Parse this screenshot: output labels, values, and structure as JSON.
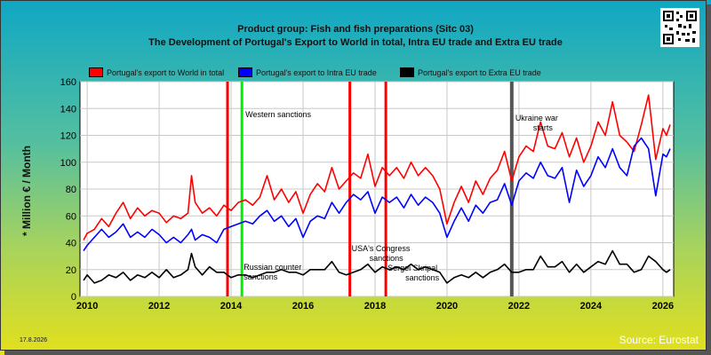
{
  "header": {
    "title_line1": "Product group: Fish and fish preparations (Sitc 03)",
    "title_line2": "The Development of Portugal's Export to World in total, Intra EU trade and Extra EU trade"
  },
  "footer": {
    "date": "17.8.2026",
    "source": "Source: Eurostat"
  },
  "logo": {
    "kind": "qr-code-icon"
  },
  "chart_data": {
    "type": "line",
    "ylabel": "* Million € / Month",
    "xlim": [
      2009.8,
      2026.3
    ],
    "ylim": [
      0,
      160
    ],
    "yticks": [
      0,
      20,
      40,
      60,
      80,
      100,
      120,
      140,
      160
    ],
    "xticks": [
      2010,
      2012,
      2014,
      2016,
      2018,
      2020,
      2022,
      2024,
      2026
    ],
    "grid": true,
    "legend_position": "top",
    "series": [
      {
        "name": "Portugal's export to World in total",
        "color": "#ff0000",
        "points": [
          [
            2009.9,
            42
          ],
          [
            2010.0,
            47
          ],
          [
            2010.2,
            50
          ],
          [
            2010.4,
            58
          ],
          [
            2010.6,
            52
          ],
          [
            2010.8,
            62
          ],
          [
            2011.0,
            70
          ],
          [
            2011.2,
            58
          ],
          [
            2011.4,
            66
          ],
          [
            2011.6,
            60
          ],
          [
            2011.8,
            64
          ],
          [
            2012.0,
            62
          ],
          [
            2012.2,
            55
          ],
          [
            2012.4,
            60
          ],
          [
            2012.6,
            58
          ],
          [
            2012.8,
            62
          ],
          [
            2012.9,
            90
          ],
          [
            2013.0,
            70
          ],
          [
            2013.2,
            62
          ],
          [
            2013.4,
            66
          ],
          [
            2013.6,
            60
          ],
          [
            2013.8,
            68
          ],
          [
            2014.0,
            64
          ],
          [
            2014.2,
            70
          ],
          [
            2014.4,
            72
          ],
          [
            2014.6,
            68
          ],
          [
            2014.8,
            74
          ],
          [
            2015.0,
            90
          ],
          [
            2015.2,
            72
          ],
          [
            2015.4,
            80
          ],
          [
            2015.6,
            70
          ],
          [
            2015.8,
            78
          ],
          [
            2016.0,
            62
          ],
          [
            2016.2,
            76
          ],
          [
            2016.4,
            84
          ],
          [
            2016.6,
            78
          ],
          [
            2016.8,
            96
          ],
          [
            2017.0,
            80
          ],
          [
            2017.2,
            86
          ],
          [
            2017.4,
            92
          ],
          [
            2017.6,
            88
          ],
          [
            2017.8,
            106
          ],
          [
            2018.0,
            82
          ],
          [
            2018.2,
            96
          ],
          [
            2018.4,
            90
          ],
          [
            2018.6,
            96
          ],
          [
            2018.8,
            88
          ],
          [
            2019.0,
            100
          ],
          [
            2019.2,
            90
          ],
          [
            2019.4,
            96
          ],
          [
            2019.6,
            90
          ],
          [
            2019.8,
            80
          ],
          [
            2020.0,
            54
          ],
          [
            2020.2,
            70
          ],
          [
            2020.4,
            82
          ],
          [
            2020.6,
            70
          ],
          [
            2020.8,
            86
          ],
          [
            2021.0,
            76
          ],
          [
            2021.2,
            88
          ],
          [
            2021.4,
            94
          ],
          [
            2021.6,
            108
          ],
          [
            2021.8,
            86
          ],
          [
            2022.0,
            104
          ],
          [
            2022.2,
            112
          ],
          [
            2022.4,
            108
          ],
          [
            2022.6,
            130
          ],
          [
            2022.8,
            112
          ],
          [
            2023.0,
            110
          ],
          [
            2023.2,
            122
          ],
          [
            2023.4,
            104
          ],
          [
            2023.6,
            118
          ],
          [
            2023.8,
            100
          ],
          [
            2024.0,
            112
          ],
          [
            2024.2,
            130
          ],
          [
            2024.4,
            120
          ],
          [
            2024.6,
            145
          ],
          [
            2024.8,
            120
          ],
          [
            2025.0,
            115
          ],
          [
            2025.2,
            108
          ],
          [
            2025.4,
            128
          ],
          [
            2025.6,
            150
          ],
          [
            2025.8,
            102
          ],
          [
            2026.0,
            125
          ],
          [
            2026.1,
            120
          ],
          [
            2026.2,
            128
          ]
        ]
      },
      {
        "name": "Portugal's export to Intra EU trade",
        "color": "#0000ff",
        "points": [
          [
            2009.9,
            34
          ],
          [
            2010.0,
            38
          ],
          [
            2010.2,
            44
          ],
          [
            2010.4,
            50
          ],
          [
            2010.6,
            44
          ],
          [
            2010.8,
            48
          ],
          [
            2011.0,
            54
          ],
          [
            2011.2,
            44
          ],
          [
            2011.4,
            48
          ],
          [
            2011.6,
            44
          ],
          [
            2011.8,
            50
          ],
          [
            2012.0,
            46
          ],
          [
            2012.2,
            40
          ],
          [
            2012.4,
            44
          ],
          [
            2012.6,
            40
          ],
          [
            2012.8,
            46
          ],
          [
            2012.9,
            50
          ],
          [
            2013.0,
            42
          ],
          [
            2013.2,
            46
          ],
          [
            2013.4,
            44
          ],
          [
            2013.6,
            40
          ],
          [
            2013.8,
            50
          ],
          [
            2014.0,
            52
          ],
          [
            2014.2,
            54
          ],
          [
            2014.4,
            56
          ],
          [
            2014.6,
            54
          ],
          [
            2014.8,
            60
          ],
          [
            2015.0,
            64
          ],
          [
            2015.2,
            56
          ],
          [
            2015.4,
            60
          ],
          [
            2015.6,
            52
          ],
          [
            2015.8,
            58
          ],
          [
            2016.0,
            44
          ],
          [
            2016.2,
            56
          ],
          [
            2016.4,
            60
          ],
          [
            2016.6,
            58
          ],
          [
            2016.8,
            70
          ],
          [
            2017.0,
            62
          ],
          [
            2017.2,
            70
          ],
          [
            2017.4,
            76
          ],
          [
            2017.6,
            72
          ],
          [
            2017.8,
            78
          ],
          [
            2018.0,
            62
          ],
          [
            2018.2,
            74
          ],
          [
            2018.4,
            70
          ],
          [
            2018.6,
            74
          ],
          [
            2018.8,
            66
          ],
          [
            2019.0,
            76
          ],
          [
            2019.2,
            68
          ],
          [
            2019.4,
            74
          ],
          [
            2019.6,
            70
          ],
          [
            2019.8,
            62
          ],
          [
            2020.0,
            44
          ],
          [
            2020.2,
            56
          ],
          [
            2020.4,
            66
          ],
          [
            2020.6,
            56
          ],
          [
            2020.8,
            68
          ],
          [
            2021.0,
            62
          ],
          [
            2021.2,
            70
          ],
          [
            2021.4,
            72
          ],
          [
            2021.6,
            84
          ],
          [
            2021.8,
            68
          ],
          [
            2022.0,
            86
          ],
          [
            2022.2,
            92
          ],
          [
            2022.4,
            88
          ],
          [
            2022.6,
            100
          ],
          [
            2022.8,
            90
          ],
          [
            2023.0,
            88
          ],
          [
            2023.2,
            96
          ],
          [
            2023.4,
            70
          ],
          [
            2023.6,
            94
          ],
          [
            2023.8,
            82
          ],
          [
            2024.0,
            90
          ],
          [
            2024.2,
            104
          ],
          [
            2024.4,
            96
          ],
          [
            2024.6,
            110
          ],
          [
            2024.8,
            96
          ],
          [
            2025.0,
            90
          ],
          [
            2025.2,
            112
          ],
          [
            2025.4,
            118
          ],
          [
            2025.6,
            110
          ],
          [
            2025.8,
            75
          ],
          [
            2026.0,
            106
          ],
          [
            2026.1,
            104
          ],
          [
            2026.2,
            110
          ]
        ]
      },
      {
        "name": "Portugal's export to Extra EU trade",
        "color": "#000000",
        "points": [
          [
            2009.9,
            12
          ],
          [
            2010.0,
            16
          ],
          [
            2010.2,
            10
          ],
          [
            2010.4,
            12
          ],
          [
            2010.6,
            16
          ],
          [
            2010.8,
            14
          ],
          [
            2011.0,
            18
          ],
          [
            2011.2,
            12
          ],
          [
            2011.4,
            16
          ],
          [
            2011.6,
            14
          ],
          [
            2011.8,
            18
          ],
          [
            2012.0,
            14
          ],
          [
            2012.2,
            20
          ],
          [
            2012.4,
            14
          ],
          [
            2012.6,
            16
          ],
          [
            2012.8,
            20
          ],
          [
            2012.9,
            32
          ],
          [
            2013.0,
            22
          ],
          [
            2013.2,
            16
          ],
          [
            2013.4,
            22
          ],
          [
            2013.6,
            18
          ],
          [
            2013.8,
            18
          ],
          [
            2014.0,
            14
          ],
          [
            2014.2,
            16
          ],
          [
            2014.4,
            16
          ],
          [
            2014.6,
            14
          ],
          [
            2014.8,
            16
          ],
          [
            2015.0,
            18
          ],
          [
            2015.2,
            18
          ],
          [
            2015.4,
            20
          ],
          [
            2015.6,
            18
          ],
          [
            2015.8,
            18
          ],
          [
            2016.0,
            16
          ],
          [
            2016.2,
            20
          ],
          [
            2016.4,
            20
          ],
          [
            2016.6,
            20
          ],
          [
            2016.8,
            26
          ],
          [
            2017.0,
            18
          ],
          [
            2017.2,
            16
          ],
          [
            2017.4,
            18
          ],
          [
            2017.6,
            20
          ],
          [
            2017.8,
            24
          ],
          [
            2018.0,
            18
          ],
          [
            2018.2,
            22
          ],
          [
            2018.4,
            20
          ],
          [
            2018.6,
            22
          ],
          [
            2018.8,
            20
          ],
          [
            2019.0,
            24
          ],
          [
            2019.2,
            20
          ],
          [
            2019.4,
            22
          ],
          [
            2019.6,
            20
          ],
          [
            2019.8,
            18
          ],
          [
            2020.0,
            10
          ],
          [
            2020.2,
            14
          ],
          [
            2020.4,
            16
          ],
          [
            2020.6,
            14
          ],
          [
            2020.8,
            18
          ],
          [
            2021.0,
            14
          ],
          [
            2021.2,
            18
          ],
          [
            2021.4,
            20
          ],
          [
            2021.6,
            24
          ],
          [
            2021.8,
            18
          ],
          [
            2022.0,
            18
          ],
          [
            2022.2,
            20
          ],
          [
            2022.4,
            20
          ],
          [
            2022.6,
            30
          ],
          [
            2022.8,
            22
          ],
          [
            2023.0,
            22
          ],
          [
            2023.2,
            26
          ],
          [
            2023.4,
            18
          ],
          [
            2023.6,
            24
          ],
          [
            2023.8,
            18
          ],
          [
            2024.0,
            22
          ],
          [
            2024.2,
            26
          ],
          [
            2024.4,
            24
          ],
          [
            2024.6,
            34
          ],
          [
            2024.8,
            24
          ],
          [
            2025.0,
            24
          ],
          [
            2025.2,
            18
          ],
          [
            2025.4,
            20
          ],
          [
            2025.6,
            30
          ],
          [
            2025.8,
            26
          ],
          [
            2026.0,
            20
          ],
          [
            2026.1,
            18
          ],
          [
            2026.2,
            20
          ]
        ]
      }
    ],
    "events": [
      {
        "x": 2013.9,
        "color": "#ff0000",
        "label": ""
      },
      {
        "x": 2014.3,
        "color": "#00ee00",
        "label": "Western sanctions"
      },
      {
        "x": 2017.3,
        "color": "#ff0000",
        "label": "USA's Congress sanctions"
      },
      {
        "x": 2018.3,
        "color": "#ff0000",
        "label": "Sergei Skripal sanctions"
      },
      {
        "x": 2021.8,
        "color": "#555555",
        "label": "Ukraine war starts"
      }
    ],
    "annotations": [
      {
        "text": "Russian counter sanctions",
        "x": 2014.4
      }
    ]
  }
}
